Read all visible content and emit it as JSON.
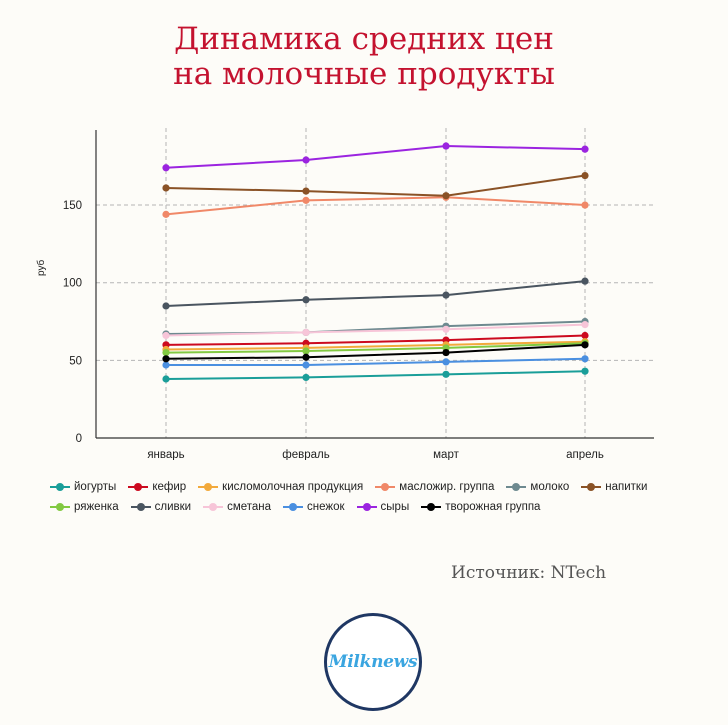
{
  "title": {
    "line1": "Динамика средних цен",
    "line2": "на молочные продукты"
  },
  "source": "Источник: NTech",
  "logo": {
    "text": "Milknews"
  },
  "chart_data": {
    "type": "line",
    "title": "Динамика средних цен на молочные продукты",
    "xlabel": "",
    "ylabel": "руб",
    "categories": [
      "январь",
      "февраль",
      "март",
      "апрель"
    ],
    "ylim": [
      0,
      195
    ],
    "yticks": [
      0,
      50,
      100,
      150
    ],
    "grid": true,
    "legend_position": "bottom",
    "series": [
      {
        "name": "йогурты",
        "color": "#1a9e99",
        "values": [
          38,
          39,
          41,
          43
        ]
      },
      {
        "name": "кефир",
        "color": "#cc0a1f",
        "values": [
          60,
          61,
          63,
          66
        ]
      },
      {
        "name": "кисломолочная продукция",
        "color": "#f2a93b",
        "values": [
          57,
          58,
          60,
          62
        ]
      },
      {
        "name": "масложир. группа",
        "color": "#f08868",
        "values": [
          144,
          153,
          155,
          150
        ]
      },
      {
        "name": "молоко",
        "color": "#6e8a90",
        "values": [
          67,
          68,
          72,
          75
        ]
      },
      {
        "name": "напитки",
        "color": "#8a5226",
        "values": [
          161,
          159,
          156,
          169
        ]
      },
      {
        "name": "ряженка",
        "color": "#82c941",
        "values": [
          55,
          56,
          58,
          61
        ]
      },
      {
        "name": "сливки",
        "color": "#4a5560",
        "values": [
          85,
          89,
          92,
          101
        ]
      },
      {
        "name": "сметана",
        "color": "#f7c5d8",
        "values": [
          66,
          68,
          70,
          73
        ]
      },
      {
        "name": "снежок",
        "color": "#4a8fe0",
        "values": [
          47,
          47,
          49,
          51
        ]
      },
      {
        "name": "сыры",
        "color": "#9b24e0",
        "values": [
          174,
          179,
          188,
          186
        ]
      },
      {
        "name": "творожная группа",
        "color": "#000000",
        "values": [
          51,
          52,
          55,
          60
        ]
      }
    ]
  }
}
